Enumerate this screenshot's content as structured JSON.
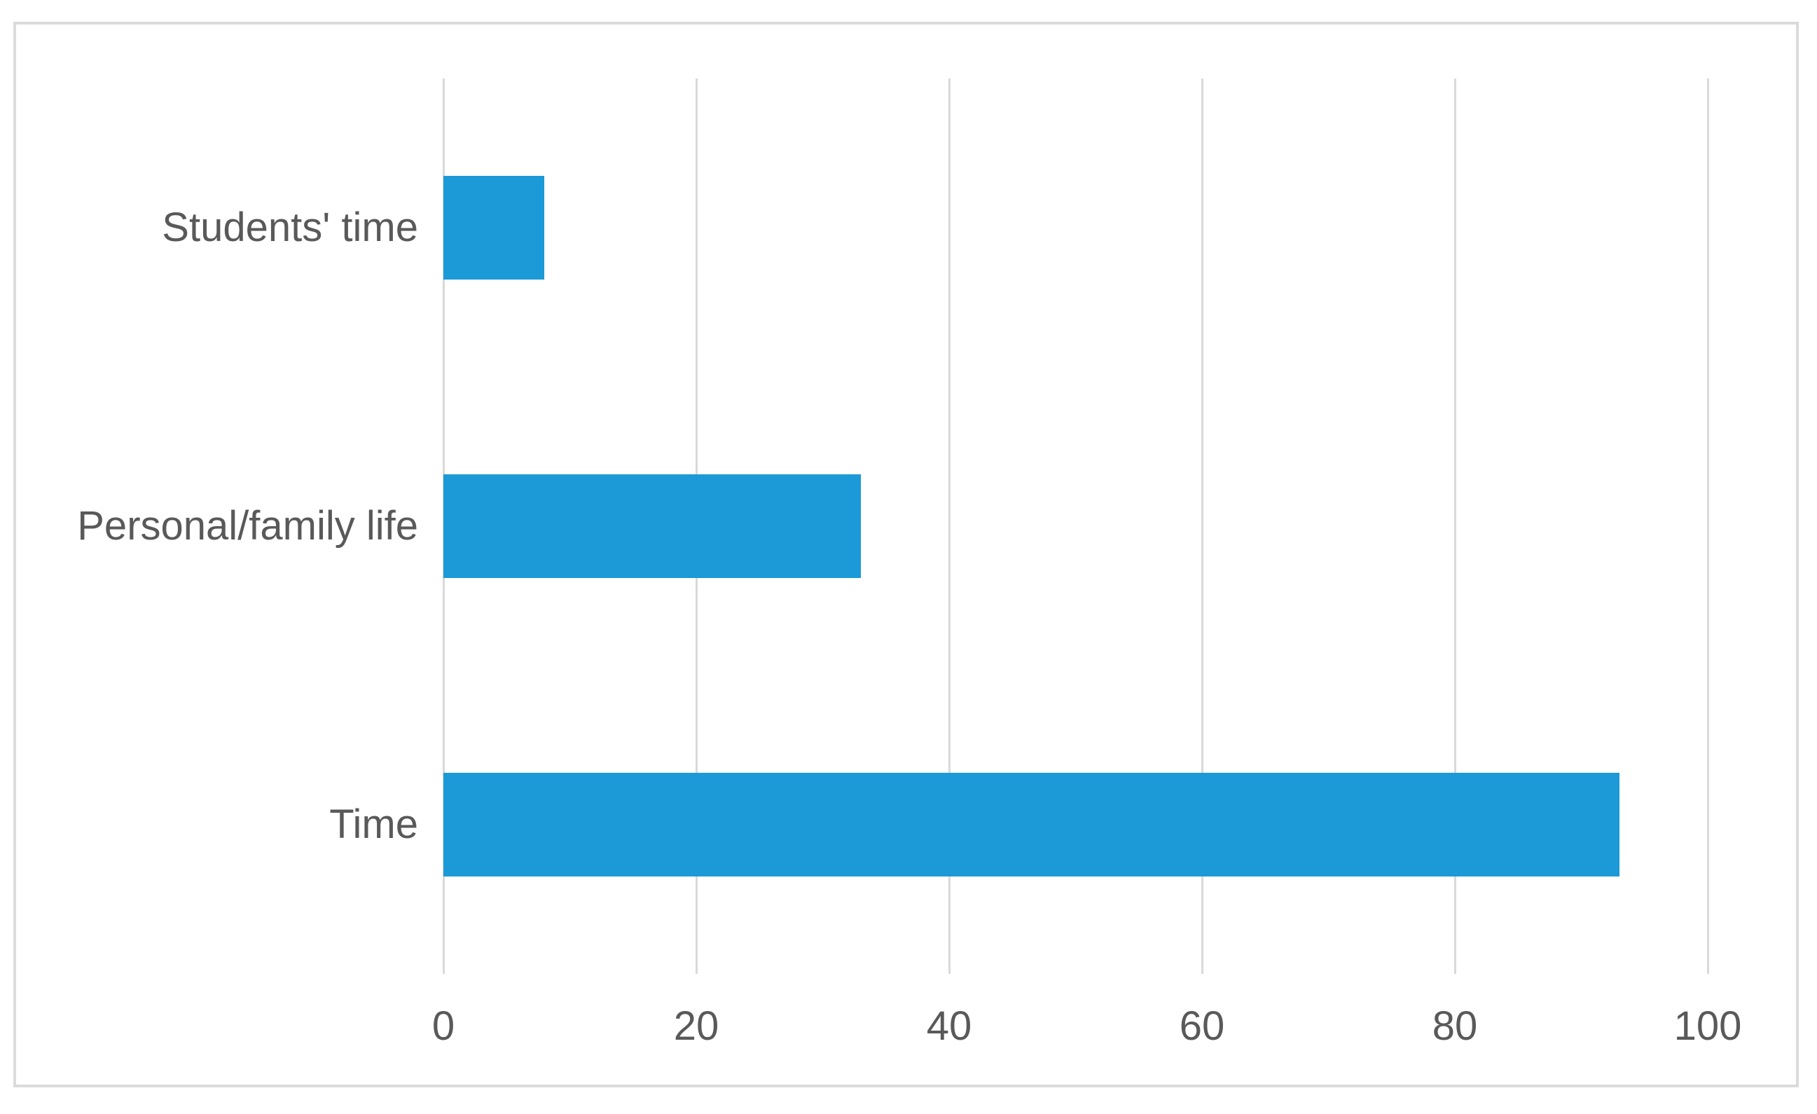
{
  "chart_data": {
    "type": "bar",
    "orientation": "horizontal",
    "title": "",
    "xlabel": "",
    "ylabel": "",
    "categories": [
      "Students' time",
      "Personal/family life",
      "Time"
    ],
    "values": [
      8,
      33,
      93
    ],
    "xlim": [
      0,
      100
    ],
    "x_ticks": [
      0,
      20,
      40,
      60,
      80,
      100
    ],
    "grid": true,
    "legend": "none",
    "bar_color": "#1b9ad7",
    "gridline_color": "#d9d9d9",
    "label_color": "#595959",
    "frame_border_color": "#dbdbdb",
    "background_color": "#ffffff"
  }
}
